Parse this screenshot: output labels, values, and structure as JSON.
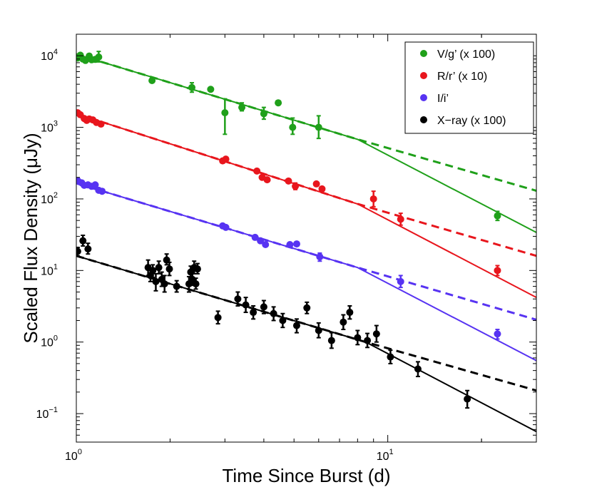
{
  "chart_data": {
    "type": "scatter",
    "xscale": "log",
    "yscale": "log",
    "xlabel": "Time Since Burst (d)",
    "ylabel": "Scaled Flux Density (μJy)",
    "xlim": [
      1,
      30
    ],
    "ylim": [
      0.04,
      20000
    ],
    "x_ticks": [
      {
        "value": 1,
        "label": "10",
        "exp": "0"
      },
      {
        "value": 10,
        "label": "10",
        "exp": "1"
      }
    ],
    "y_ticks": [
      {
        "value": 0.1,
        "label": "10",
        "exp": "−1"
      },
      {
        "value": 1,
        "label": "10",
        "exp": "0"
      },
      {
        "value": 10,
        "label": "10",
        "exp": "1"
      },
      {
        "value": 100,
        "label": "10",
        "exp": "2"
      },
      {
        "value": 1000,
        "label": "10",
        "exp": "3"
      },
      {
        "value": 10000,
        "label": "10",
        "exp": "4"
      }
    ],
    "legend_position": "top-right",
    "series": [
      {
        "name": "V/g’ (x 100)",
        "color": "#1fa01a",
        "points": [
          {
            "x": 1.01,
            "y": 9300,
            "lo": 9300,
            "hi": 9300
          },
          {
            "x": 1.03,
            "y": 10200,
            "lo": 10200,
            "hi": 10200
          },
          {
            "x": 1.05,
            "y": 9000,
            "lo": 9000,
            "hi": 9000
          },
          {
            "x": 1.07,
            "y": 8600,
            "lo": 8600,
            "hi": 8600
          },
          {
            "x": 1.1,
            "y": 9900,
            "lo": 9900,
            "hi": 9900
          },
          {
            "x": 1.12,
            "y": 8800,
            "lo": 8800,
            "hi": 8800
          },
          {
            "x": 1.15,
            "y": 8900,
            "lo": 8900,
            "hi": 8900
          },
          {
            "x": 1.18,
            "y": 9600,
            "lo": 8200,
            "hi": 11500
          },
          {
            "x": 1.75,
            "y": 4500,
            "lo": 4500,
            "hi": 4500
          },
          {
            "x": 2.35,
            "y": 3600,
            "lo": 3100,
            "hi": 4200
          },
          {
            "x": 2.7,
            "y": 3400,
            "lo": 3400,
            "hi": 3400
          },
          {
            "x": 3.0,
            "y": 1600,
            "lo": 800,
            "hi": 2500
          },
          {
            "x": 3.4,
            "y": 1900,
            "lo": 1700,
            "hi": 2200
          },
          {
            "x": 4.0,
            "y": 1550,
            "lo": 1300,
            "hi": 1900
          },
          {
            "x": 4.45,
            "y": 2200,
            "lo": 2200,
            "hi": 2200
          },
          {
            "x": 4.95,
            "y": 1000,
            "lo": 800,
            "hi": 1350
          },
          {
            "x": 6.0,
            "y": 1000,
            "lo": 700,
            "hi": 1450
          },
          {
            "x": 22.5,
            "y": 58,
            "lo": 50,
            "hi": 67
          }
        ],
        "model_solid": [
          [
            1.0,
            10500
          ],
          [
            8.0,
            680
          ],
          [
            30.0,
            34
          ]
        ],
        "model_dashed": [
          [
            1.0,
            10500
          ],
          [
            8.0,
            680
          ],
          [
            30.0,
            130
          ]
        ]
      },
      {
        "name": "R/r’ (x 10)",
        "color": "#e8161d",
        "points": [
          {
            "x": 1.01,
            "y": 1600,
            "lo": 1600,
            "hi": 1600
          },
          {
            "x": 1.03,
            "y": 1500,
            "lo": 1500,
            "hi": 1500
          },
          {
            "x": 1.06,
            "y": 1330,
            "lo": 1330,
            "hi": 1330
          },
          {
            "x": 1.08,
            "y": 1250,
            "lo": 1250,
            "hi": 1250
          },
          {
            "x": 1.1,
            "y": 1310,
            "lo": 1310,
            "hi": 1310
          },
          {
            "x": 1.13,
            "y": 1270,
            "lo": 1270,
            "hi": 1270
          },
          {
            "x": 1.16,
            "y": 1170,
            "lo": 1170,
            "hi": 1170
          },
          {
            "x": 1.2,
            "y": 1110,
            "lo": 1110,
            "hi": 1110
          },
          {
            "x": 2.95,
            "y": 340,
            "lo": 340,
            "hi": 340
          },
          {
            "x": 3.02,
            "y": 360,
            "lo": 360,
            "hi": 360
          },
          {
            "x": 3.8,
            "y": 245,
            "lo": 245,
            "hi": 245
          },
          {
            "x": 3.95,
            "y": 200,
            "lo": 200,
            "hi": 200
          },
          {
            "x": 4.1,
            "y": 185,
            "lo": 185,
            "hi": 185
          },
          {
            "x": 4.8,
            "y": 178,
            "lo": 178,
            "hi": 178
          },
          {
            "x": 5.05,
            "y": 150,
            "lo": 135,
            "hi": 167
          },
          {
            "x": 5.9,
            "y": 162,
            "lo": 162,
            "hi": 162
          },
          {
            "x": 6.15,
            "y": 138,
            "lo": 138,
            "hi": 138
          },
          {
            "x": 9.0,
            "y": 100,
            "lo": 78,
            "hi": 128
          },
          {
            "x": 11.0,
            "y": 52,
            "lo": 43,
            "hi": 63
          },
          {
            "x": 22.5,
            "y": 10,
            "lo": 8.5,
            "hi": 11.7
          }
        ],
        "model_solid": [
          [
            1.0,
            1550
          ],
          [
            8.0,
            85
          ],
          [
            30.0,
            4.2
          ]
        ],
        "model_dashed": [
          [
            1.0,
            1550
          ],
          [
            8.0,
            85
          ],
          [
            30.0,
            16
          ]
        ]
      },
      {
        "name": "I/i’",
        "color": "#5733f2",
        "points": [
          {
            "x": 1.01,
            "y": 180,
            "lo": 180,
            "hi": 180
          },
          {
            "x": 1.04,
            "y": 168,
            "lo": 168,
            "hi": 168
          },
          {
            "x": 1.06,
            "y": 155,
            "lo": 155,
            "hi": 155
          },
          {
            "x": 1.09,
            "y": 157,
            "lo": 157,
            "hi": 157
          },
          {
            "x": 1.12,
            "y": 150,
            "lo": 150,
            "hi": 150
          },
          {
            "x": 1.15,
            "y": 157,
            "lo": 157,
            "hi": 157
          },
          {
            "x": 1.18,
            "y": 132,
            "lo": 132,
            "hi": 132
          },
          {
            "x": 1.21,
            "y": 128,
            "lo": 128,
            "hi": 128
          },
          {
            "x": 2.95,
            "y": 42,
            "lo": 42,
            "hi": 42
          },
          {
            "x": 3.02,
            "y": 40,
            "lo": 40,
            "hi": 40
          },
          {
            "x": 3.75,
            "y": 29,
            "lo": 29,
            "hi": 29
          },
          {
            "x": 3.9,
            "y": 26,
            "lo": 26,
            "hi": 26
          },
          {
            "x": 4.05,
            "y": 23,
            "lo": 23,
            "hi": 23
          },
          {
            "x": 4.85,
            "y": 23,
            "lo": 23,
            "hi": 23
          },
          {
            "x": 5.1,
            "y": 23.5,
            "lo": 23.5,
            "hi": 23.5
          },
          {
            "x": 6.05,
            "y": 15.5,
            "lo": 13.5,
            "hi": 17.5
          },
          {
            "x": 11.0,
            "y": 7,
            "lo": 5.8,
            "hi": 8.5
          },
          {
            "x": 22.5,
            "y": 1.3,
            "lo": 1.1,
            "hi": 1.5
          }
        ],
        "model_solid": [
          [
            1.0,
            165
          ],
          [
            8.0,
            11
          ],
          [
            30.0,
            0.55
          ]
        ],
        "model_dashed": [
          [
            1.0,
            165
          ],
          [
            8.0,
            11
          ],
          [
            30.0,
            2.05
          ]
        ]
      },
      {
        "name": "X−ray (x 100)",
        "color": "#000000",
        "points": [
          {
            "x": 1.01,
            "y": 18.5,
            "lo": 16,
            "hi": 21
          },
          {
            "x": 1.05,
            "y": 26,
            "lo": 22,
            "hi": 31
          },
          {
            "x": 1.09,
            "y": 20,
            "lo": 17,
            "hi": 24
          },
          {
            "x": 1.7,
            "y": 11,
            "lo": 8.5,
            "hi": 14
          },
          {
            "x": 1.73,
            "y": 8.5,
            "lo": 7,
            "hi": 10.5
          },
          {
            "x": 1.76,
            "y": 10,
            "lo": 8,
            "hi": 12
          },
          {
            "x": 1.8,
            "y": 7,
            "lo": 5.2,
            "hi": 9
          },
          {
            "x": 1.84,
            "y": 11,
            "lo": 9,
            "hi": 13.5
          },
          {
            "x": 1.88,
            "y": 7.5,
            "lo": 6,
            "hi": 9.5
          },
          {
            "x": 1.92,
            "y": 6.5,
            "lo": 5,
            "hi": 8.5
          },
          {
            "x": 1.95,
            "y": 14,
            "lo": 12,
            "hi": 17
          },
          {
            "x": 1.99,
            "y": 10.5,
            "lo": 8.5,
            "hi": 13
          },
          {
            "x": 2.1,
            "y": 6,
            "lo": 5,
            "hi": 7.2
          },
          {
            "x": 2.3,
            "y": 6.5,
            "lo": 5,
            "hi": 8.2
          },
          {
            "x": 2.33,
            "y": 9.5,
            "lo": 8,
            "hi": 11.5
          },
          {
            "x": 2.36,
            "y": 7.5,
            "lo": 6.2,
            "hi": 9
          },
          {
            "x": 2.39,
            "y": 11,
            "lo": 9,
            "hi": 13.5
          },
          {
            "x": 2.42,
            "y": 6.5,
            "lo": 5.5,
            "hi": 7.8
          },
          {
            "x": 2.45,
            "y": 10.5,
            "lo": 9,
            "hi": 12.5
          },
          {
            "x": 2.85,
            "y": 2.2,
            "lo": 1.8,
            "hi": 2.7
          },
          {
            "x": 3.3,
            "y": 4,
            "lo": 3.2,
            "hi": 5
          },
          {
            "x": 3.5,
            "y": 3.3,
            "lo": 2.6,
            "hi": 4.2
          },
          {
            "x": 3.7,
            "y": 2.6,
            "lo": 2.1,
            "hi": 3.2
          },
          {
            "x": 4.0,
            "y": 3.1,
            "lo": 2.5,
            "hi": 3.8
          },
          {
            "x": 4.3,
            "y": 2.5,
            "lo": 2,
            "hi": 3.1
          },
          {
            "x": 4.6,
            "y": 2,
            "lo": 1.6,
            "hi": 2.5
          },
          {
            "x": 5.1,
            "y": 1.7,
            "lo": 1.35,
            "hi": 2.1
          },
          {
            "x": 5.5,
            "y": 3,
            "lo": 2.5,
            "hi": 3.6
          },
          {
            "x": 6.0,
            "y": 1.45,
            "lo": 1.15,
            "hi": 1.85
          },
          {
            "x": 6.6,
            "y": 1.05,
            "lo": 0.82,
            "hi": 1.35
          },
          {
            "x": 7.2,
            "y": 1.9,
            "lo": 1.5,
            "hi": 2.4
          },
          {
            "x": 7.55,
            "y": 2.6,
            "lo": 2.1,
            "hi": 3.2
          },
          {
            "x": 8.0,
            "y": 1.15,
            "lo": 0.92,
            "hi": 1.45
          },
          {
            "x": 8.6,
            "y": 1.05,
            "lo": 0.84,
            "hi": 1.32
          },
          {
            "x": 9.2,
            "y": 1.3,
            "lo": 1.0,
            "hi": 1.7
          },
          {
            "x": 10.2,
            "y": 0.62,
            "lo": 0.5,
            "hi": 0.77
          },
          {
            "x": 12.5,
            "y": 0.42,
            "lo": 0.33,
            "hi": 0.53
          },
          {
            "x": 18.0,
            "y": 0.16,
            "lo": 0.12,
            "hi": 0.21
          }
        ],
        "model_solid": [
          [
            1.0,
            16
          ],
          [
            8.5,
            1.0
          ],
          [
            30.0,
            0.056
          ]
        ],
        "model_dashed": [
          [
            1.0,
            16
          ],
          [
            8.5,
            1.0
          ],
          [
            30.0,
            0.21
          ]
        ]
      }
    ]
  }
}
